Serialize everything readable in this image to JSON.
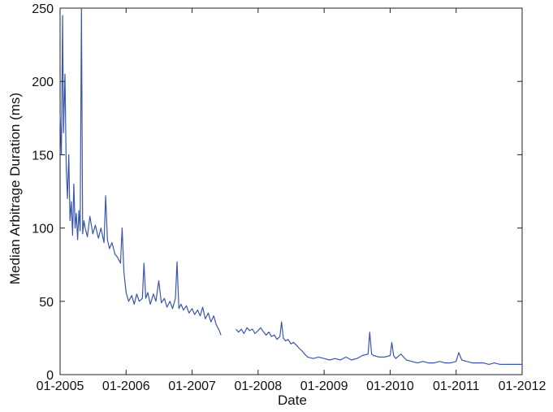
{
  "chart_data": {
    "type": "line",
    "title": "",
    "xlabel": "Date",
    "ylabel": "Median Arbitrage Duration (ms)",
    "x_ticks": [
      "01-2005",
      "01-2006",
      "01-2007",
      "01-2008",
      "01-2009",
      "01-2010",
      "01-2011",
      "01-2012"
    ],
    "y_ticks": [
      "0",
      "50",
      "100",
      "150",
      "200",
      "250"
    ],
    "xlim": [
      "2005-01-01",
      "2012-01-01"
    ],
    "ylim": [
      0,
      250
    ],
    "grid": false,
    "line_color": "#3a56ad",
    "series": [
      {
        "points": [
          [
            "2005-01-01",
            178
          ],
          [
            "2005-01-08",
            150
          ],
          [
            "2005-01-15",
            245
          ],
          [
            "2005-01-20",
            165
          ],
          [
            "2005-01-28",
            205
          ],
          [
            "2005-02-04",
            140
          ],
          [
            "2005-02-11",
            120
          ],
          [
            "2005-02-18",
            150
          ],
          [
            "2005-02-25",
            105
          ],
          [
            "2005-03-04",
            118
          ],
          [
            "2005-03-11",
            95
          ],
          [
            "2005-03-18",
            130
          ],
          [
            "2005-03-25",
            100
          ],
          [
            "2005-04-01",
            110
          ],
          [
            "2005-04-08",
            92
          ],
          [
            "2005-04-15",
            112
          ],
          [
            "2005-04-22",
            98
          ],
          [
            "2005-04-29",
            250
          ],
          [
            "2005-05-06",
            96
          ],
          [
            "2005-05-13",
            105
          ],
          [
            "2005-05-20",
            100
          ],
          [
            "2005-06-01",
            94
          ],
          [
            "2005-06-15",
            108
          ],
          [
            "2005-07-01",
            96
          ],
          [
            "2005-07-15",
            102
          ],
          [
            "2005-08-01",
            93
          ],
          [
            "2005-08-15",
            100
          ],
          [
            "2005-09-01",
            90
          ],
          [
            "2005-09-10",
            122
          ],
          [
            "2005-09-20",
            92
          ],
          [
            "2005-10-01",
            86
          ],
          [
            "2005-10-15",
            90
          ],
          [
            "2005-11-01",
            82
          ],
          [
            "2005-11-15",
            80
          ],
          [
            "2005-12-01",
            76
          ],
          [
            "2005-12-10",
            100
          ],
          [
            "2005-12-20",
            70
          ],
          [
            "2006-01-01",
            56
          ],
          [
            "2006-01-15",
            50
          ],
          [
            "2006-02-01",
            54
          ],
          [
            "2006-02-15",
            48
          ],
          [
            "2006-03-01",
            55
          ],
          [
            "2006-03-15",
            50
          ],
          [
            "2006-04-01",
            52
          ],
          [
            "2006-04-10",
            76
          ],
          [
            "2006-04-20",
            52
          ],
          [
            "2006-05-01",
            56
          ],
          [
            "2006-05-15",
            48
          ],
          [
            "2006-06-01",
            55
          ],
          [
            "2006-06-15",
            50
          ],
          [
            "2006-07-01",
            64
          ],
          [
            "2006-07-15",
            49
          ],
          [
            "2006-08-01",
            52
          ],
          [
            "2006-08-15",
            46
          ],
          [
            "2006-09-01",
            50
          ],
          [
            "2006-09-15",
            45
          ],
          [
            "2006-10-01",
            52
          ],
          [
            "2006-10-10",
            77
          ],
          [
            "2006-10-20",
            45
          ],
          [
            "2006-11-01",
            48
          ],
          [
            "2006-11-15",
            44
          ],
          [
            "2006-12-01",
            47
          ],
          [
            "2006-12-15",
            42
          ],
          [
            "2007-01-01",
            45
          ],
          [
            "2007-01-15",
            41
          ],
          [
            "2007-02-01",
            44
          ],
          [
            "2007-02-15",
            40
          ],
          [
            "2007-03-01",
            46
          ],
          [
            "2007-03-15",
            38
          ],
          [
            "2007-04-01",
            42
          ],
          [
            "2007-04-15",
            36
          ],
          [
            "2007-05-01",
            40
          ],
          [
            "2007-05-15",
            34
          ],
          [
            "2007-06-01",
            30
          ],
          [
            "2007-06-10",
            27
          ],
          null,
          [
            "2007-09-01",
            31
          ],
          [
            "2007-09-15",
            29
          ],
          [
            "2007-10-01",
            31
          ],
          [
            "2007-10-15",
            28
          ],
          [
            "2007-11-01",
            32
          ],
          [
            "2007-11-15",
            30
          ],
          [
            "2007-12-01",
            31
          ],
          [
            "2007-12-15",
            28
          ],
          [
            "2008-01-01",
            30
          ],
          [
            "2008-01-15",
            32
          ],
          [
            "2008-02-01",
            29
          ],
          [
            "2008-02-15",
            27
          ],
          [
            "2008-03-01",
            29
          ],
          [
            "2008-03-15",
            26
          ],
          [
            "2008-04-01",
            27
          ],
          [
            "2008-04-15",
            24
          ],
          [
            "2008-05-01",
            26
          ],
          [
            "2008-05-10",
            36
          ],
          [
            "2008-05-20",
            25
          ],
          [
            "2008-06-01",
            23
          ],
          [
            "2008-06-15",
            24
          ],
          [
            "2008-07-01",
            21
          ],
          [
            "2008-07-15",
            22
          ],
          [
            "2008-08-01",
            20
          ],
          [
            "2008-08-15",
            18
          ],
          [
            "2008-09-01",
            16
          ],
          [
            "2008-09-15",
            14
          ],
          [
            "2008-10-01",
            12
          ],
          [
            "2008-11-01",
            11
          ],
          [
            "2008-12-01",
            12
          ],
          [
            "2009-01-01",
            11
          ],
          [
            "2009-02-01",
            10
          ],
          [
            "2009-03-01",
            11
          ],
          [
            "2009-04-01",
            10
          ],
          [
            "2009-05-01",
            12
          ],
          [
            "2009-06-01",
            10
          ],
          [
            "2009-07-01",
            11
          ],
          [
            "2009-08-01",
            13
          ],
          [
            "2009-09-01",
            14
          ],
          [
            "2009-09-10",
            29
          ],
          [
            "2009-09-20",
            14
          ],
          [
            "2009-10-01",
            13
          ],
          [
            "2009-11-01",
            12
          ],
          [
            "2009-12-01",
            12
          ],
          [
            "2010-01-01",
            13
          ],
          [
            "2010-01-10",
            22
          ],
          [
            "2010-01-20",
            13
          ],
          [
            "2010-02-01",
            11
          ],
          [
            "2010-03-01",
            14
          ],
          [
            "2010-04-01",
            10
          ],
          [
            "2010-05-01",
            9
          ],
          [
            "2010-06-01",
            8
          ],
          [
            "2010-07-01",
            9
          ],
          [
            "2010-08-01",
            8
          ],
          [
            "2010-09-01",
            8
          ],
          [
            "2010-10-01",
            9
          ],
          [
            "2010-11-01",
            8
          ],
          [
            "2010-12-01",
            8
          ],
          [
            "2011-01-01",
            9
          ],
          [
            "2011-01-15",
            15
          ],
          [
            "2011-02-01",
            10
          ],
          [
            "2011-03-01",
            9
          ],
          [
            "2011-04-01",
            8
          ],
          [
            "2011-05-01",
            8
          ],
          [
            "2011-06-01",
            8
          ],
          [
            "2011-07-01",
            7
          ],
          [
            "2011-08-01",
            8
          ],
          [
            "2011-09-01",
            7
          ],
          [
            "2011-10-01",
            7
          ],
          [
            "2011-11-01",
            7
          ],
          [
            "2011-12-01",
            7
          ],
          [
            "2012-01-01",
            7
          ]
        ]
      }
    ]
  }
}
